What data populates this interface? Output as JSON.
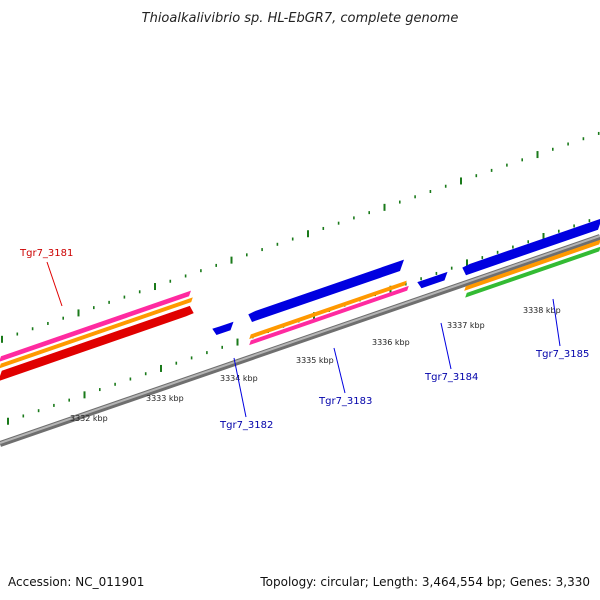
{
  "title": "Thioalkalivibrio sp. HL-EbGR7, complete genome",
  "footer": {
    "accession": "Accession: NC_011901",
    "stats": "Topology: circular; Length: 3,464,554 bp; Genes: 3,330"
  },
  "colors": {
    "backbone": "#8a8a8a",
    "tick": "#1a7a1a",
    "gene_forward": "#e00000",
    "gene_reverse": "#0000e0",
    "cds_orange": "#ff9900",
    "cds_magenta": "#ff2aa0",
    "cds_green": "#33bb33",
    "label_forward": "#cc0000",
    "label_reverse": "#0000aa"
  },
  "scale_labels": [
    "3332 kbp",
    "3333 kbp",
    "3334 kbp",
    "3335 kbp",
    "3336 kbp",
    "3337 kbp",
    "3338 kbp"
  ],
  "genes": [
    {
      "name": "Tgr7_3181",
      "strand": "forward"
    },
    {
      "name": "Tgr7_3182",
      "strand": "reverse"
    },
    {
      "name": "Tgr7_3183",
      "strand": "reverse"
    },
    {
      "name": "Tgr7_3184",
      "strand": "reverse"
    },
    {
      "name": "Tgr7_3185",
      "strand": "reverse"
    }
  ]
}
